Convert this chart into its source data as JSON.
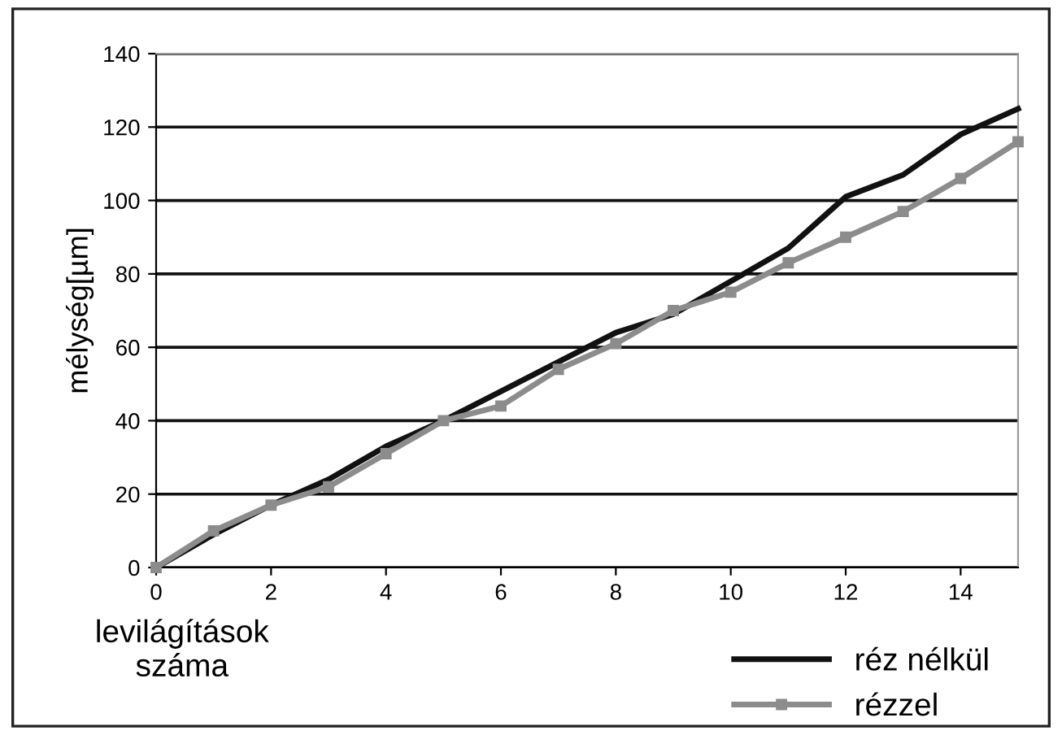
{
  "chart_data": {
    "type": "line",
    "xlabel": "levilágítások\nszáma",
    "ylabel": "mélység[µm]",
    "x": [
      0,
      1,
      2,
      3,
      4,
      5,
      6,
      7,
      8,
      9,
      10,
      11,
      12,
      13,
      14,
      15
    ],
    "series": [
      {
        "name": "réz nélkül",
        "color": "#111111",
        "marker": "none",
        "values": [
          0,
          9,
          17,
          24,
          33,
          40,
          48,
          56,
          64,
          69,
          78,
          87,
          101,
          107,
          118,
          125
        ]
      },
      {
        "name": "rézzel",
        "color": "#8c8c8c",
        "marker": "square",
        "values": [
          0,
          10,
          17,
          22,
          31,
          40,
          44,
          54,
          61,
          70,
          75,
          83,
          90,
          97,
          106,
          116
        ]
      }
    ],
    "xlim": [
      0,
      15
    ],
    "xticks": [
      0,
      2,
      4,
      6,
      8,
      10,
      12,
      14
    ],
    "ylim": [
      0,
      140
    ],
    "yticks": [
      0,
      20,
      40,
      60,
      80,
      100,
      120,
      140
    ],
    "grid": "y",
    "legend": "bottom right",
    "line_style": "solid"
  }
}
